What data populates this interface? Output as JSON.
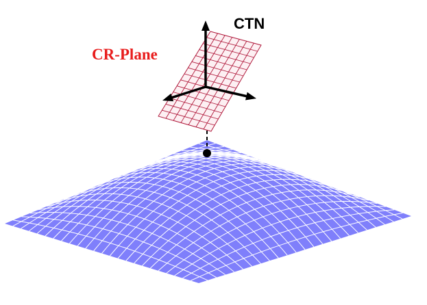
{
  "labels": {
    "ctn": "CTN",
    "cr_plane": "CR-Plane"
  },
  "colors": {
    "surface_fill": "#7f7ffb",
    "surface_grid": "#ffffff",
    "plane_fill": "#fdf0f3",
    "plane_grid": "#b01a3c",
    "cr_plane_label": "#e81c1c",
    "axes": "#000000"
  }
}
